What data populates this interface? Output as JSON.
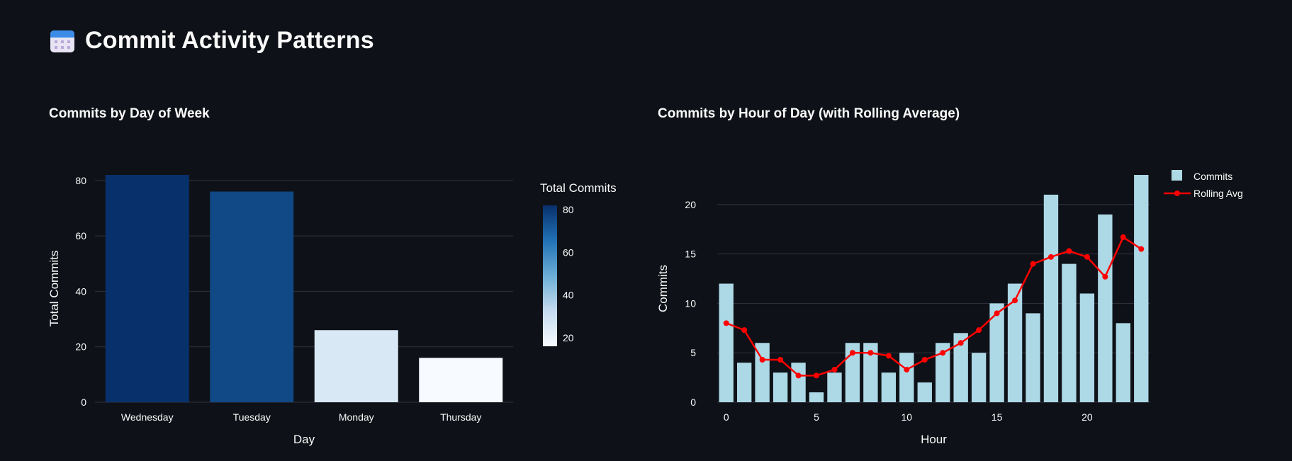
{
  "page": {
    "title": "Commit Activity Patterns",
    "icon": "calendar-icon"
  },
  "chart_data": [
    {
      "type": "bar",
      "title": "Commits by Day of Week",
      "xlabel": "Day",
      "ylabel": "Total Commits",
      "categories": [
        "Wednesday",
        "Tuesday",
        "Monday",
        "Thursday"
      ],
      "values": [
        82,
        76,
        26,
        16
      ],
      "ylim": [
        0,
        82
      ],
      "yticks": [
        0,
        20,
        40,
        60,
        80
      ],
      "grid": true,
      "colorbar": {
        "title": "Total Commits",
        "range": [
          16,
          82
        ],
        "ticks": [
          20,
          40,
          60,
          80
        ],
        "colorscale": "Blues"
      }
    },
    {
      "type": "bar+line",
      "title": "Commits by Hour of Day (with Rolling Average)",
      "xlabel": "Hour",
      "ylabel": "Commits",
      "x": [
        0,
        1,
        2,
        3,
        4,
        5,
        6,
        7,
        8,
        9,
        10,
        11,
        12,
        13,
        14,
        15,
        16,
        17,
        18,
        19,
        20,
        21,
        22,
        23
      ],
      "xticks": [
        0,
        5,
        10,
        15,
        20
      ],
      "yticks": [
        0,
        5,
        10,
        15,
        20
      ],
      "ylim": [
        0,
        23
      ],
      "grid": true,
      "legend_position": "top-right",
      "series": [
        {
          "name": "Commits",
          "kind": "bar",
          "color": "#add8e6",
          "values": [
            12,
            4,
            6,
            3,
            4,
            1,
            3,
            6,
            6,
            3,
            5,
            2,
            6,
            7,
            5,
            10,
            12,
            9,
            21,
            14,
            11,
            19,
            8,
            23
          ]
        },
        {
          "name": "Rolling Avg",
          "kind": "line",
          "color": "#ff0000",
          "values": [
            8,
            7.3,
            4.3,
            4.3,
            2.7,
            2.7,
            3.3,
            5,
            5,
            4.7,
            3.3,
            4.3,
            5,
            6,
            7.3,
            9,
            10.3,
            14,
            14.7,
            15.3,
            14.7,
            12.7,
            16.7,
            15.5
          ]
        }
      ]
    }
  ]
}
